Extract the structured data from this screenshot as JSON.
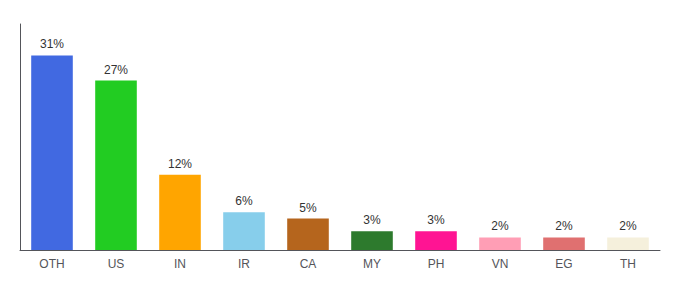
{
  "chart_data": {
    "type": "bar",
    "categories": [
      "OTH",
      "US",
      "IN",
      "IR",
      "CA",
      "MY",
      "PH",
      "VN",
      "EG",
      "TH"
    ],
    "values": [
      31,
      27,
      12,
      6,
      5,
      3,
      3,
      2,
      2,
      2
    ],
    "value_labels": [
      "31%",
      "27%",
      "12%",
      "6%",
      "5%",
      "3%",
      "3%",
      "2%",
      "2%",
      "2%"
    ],
    "colors": [
      "#4169e1",
      "#22cc22",
      "#ffa500",
      "#87ceeb",
      "#b5651d",
      "#2d7a2d",
      "#ff1493",
      "#ff9eb5",
      "#e07070",
      "#f5f0dc"
    ],
    "ylim": [
      0,
      36
    ],
    "data_labels": true,
    "tick_labels": "x",
    "grid": false
  }
}
